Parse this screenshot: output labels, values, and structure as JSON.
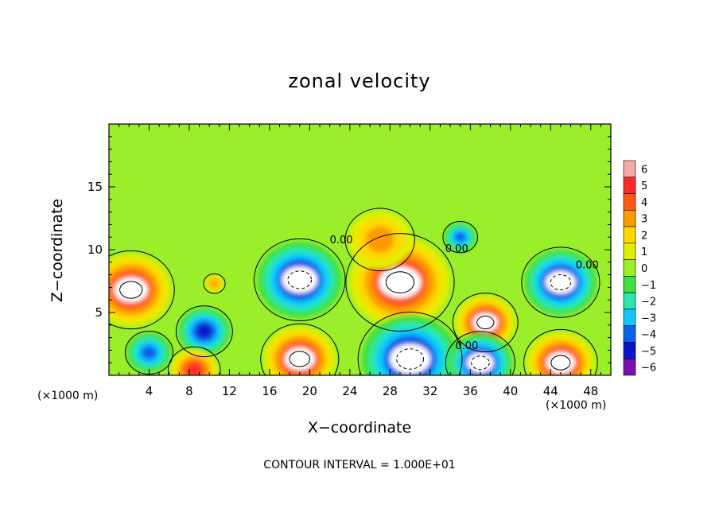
{
  "chart_data": {
    "type": "heatmap",
    "title": "zonal velocity",
    "xlabel": "X−coordinate",
    "ylabel": "Z−coordinate",
    "x_unit_left": "(×1000 m)",
    "x_unit_right": "(×1000 m)",
    "footer": "CONTOUR INTERVAL = 1.000E+01",
    "xlim": [
      0,
      50
    ],
    "ylim": [
      0,
      20
    ],
    "x_ticks": [
      4,
      8,
      12,
      16,
      20,
      24,
      28,
      32,
      36,
      40,
      44,
      48
    ],
    "y_ticks": [
      5,
      10,
      15
    ],
    "colorbar": {
      "ticks": [
        "6",
        "5",
        "4",
        "3",
        "2",
        "1",
        "0",
        "−1",
        "−2",
        "−3",
        "−4",
        "−5",
        "−6"
      ],
      "colors": [
        "#f5a8a8",
        "#ff2a2a",
        "#ff5a14",
        "#ff9a00",
        "#ffd800",
        "#e0f000",
        "#9aee2a",
        "#40e040",
        "#28e8b0",
        "#10c8ff",
        "#0a60e8",
        "#0a14c8",
        "#7a10b0"
      ]
    },
    "contour_labels": [
      "0.00",
      "0.00",
      "0.00",
      "0.00"
    ],
    "background_value": 0,
    "cells": [
      {
        "x": 2.2,
        "y": 6.8,
        "r": 4.0,
        "v": 6
      },
      {
        "x": 9.5,
        "y": 3.5,
        "r": 2.6,
        "v": -5
      },
      {
        "x": 4,
        "y": 1.8,
        "r": 2.2,
        "v": -4
      },
      {
        "x": 8.5,
        "y": 0.4,
        "r": 2.4,
        "v": 5
      },
      {
        "x": 19,
        "y": 7.6,
        "r": 4.2,
        "v": -6
      },
      {
        "x": 19,
        "y": 1.3,
        "r": 3.6,
        "v": 6
      },
      {
        "x": 29,
        "y": 7.4,
        "r": 5.0,
        "v": 6
      },
      {
        "x": 30,
        "y": 1.3,
        "r": 4.8,
        "v": -6
      },
      {
        "x": 37.5,
        "y": 4.2,
        "r": 3.0,
        "v": 6
      },
      {
        "x": 37,
        "y": 1.0,
        "r": 3.2,
        "v": -6
      },
      {
        "x": 45,
        "y": 7.4,
        "r": 3.6,
        "v": -6
      },
      {
        "x": 45,
        "y": 1.0,
        "r": 3.4,
        "v": 6
      },
      {
        "x": 35,
        "y": 11.0,
        "r": 1.6,
        "v": -4
      },
      {
        "x": 27,
        "y": 10.8,
        "r": 3.2,
        "v": 3
      },
      {
        "x": 10.5,
        "y": 7.3,
        "r": 1.0,
        "v": 3
      }
    ]
  }
}
